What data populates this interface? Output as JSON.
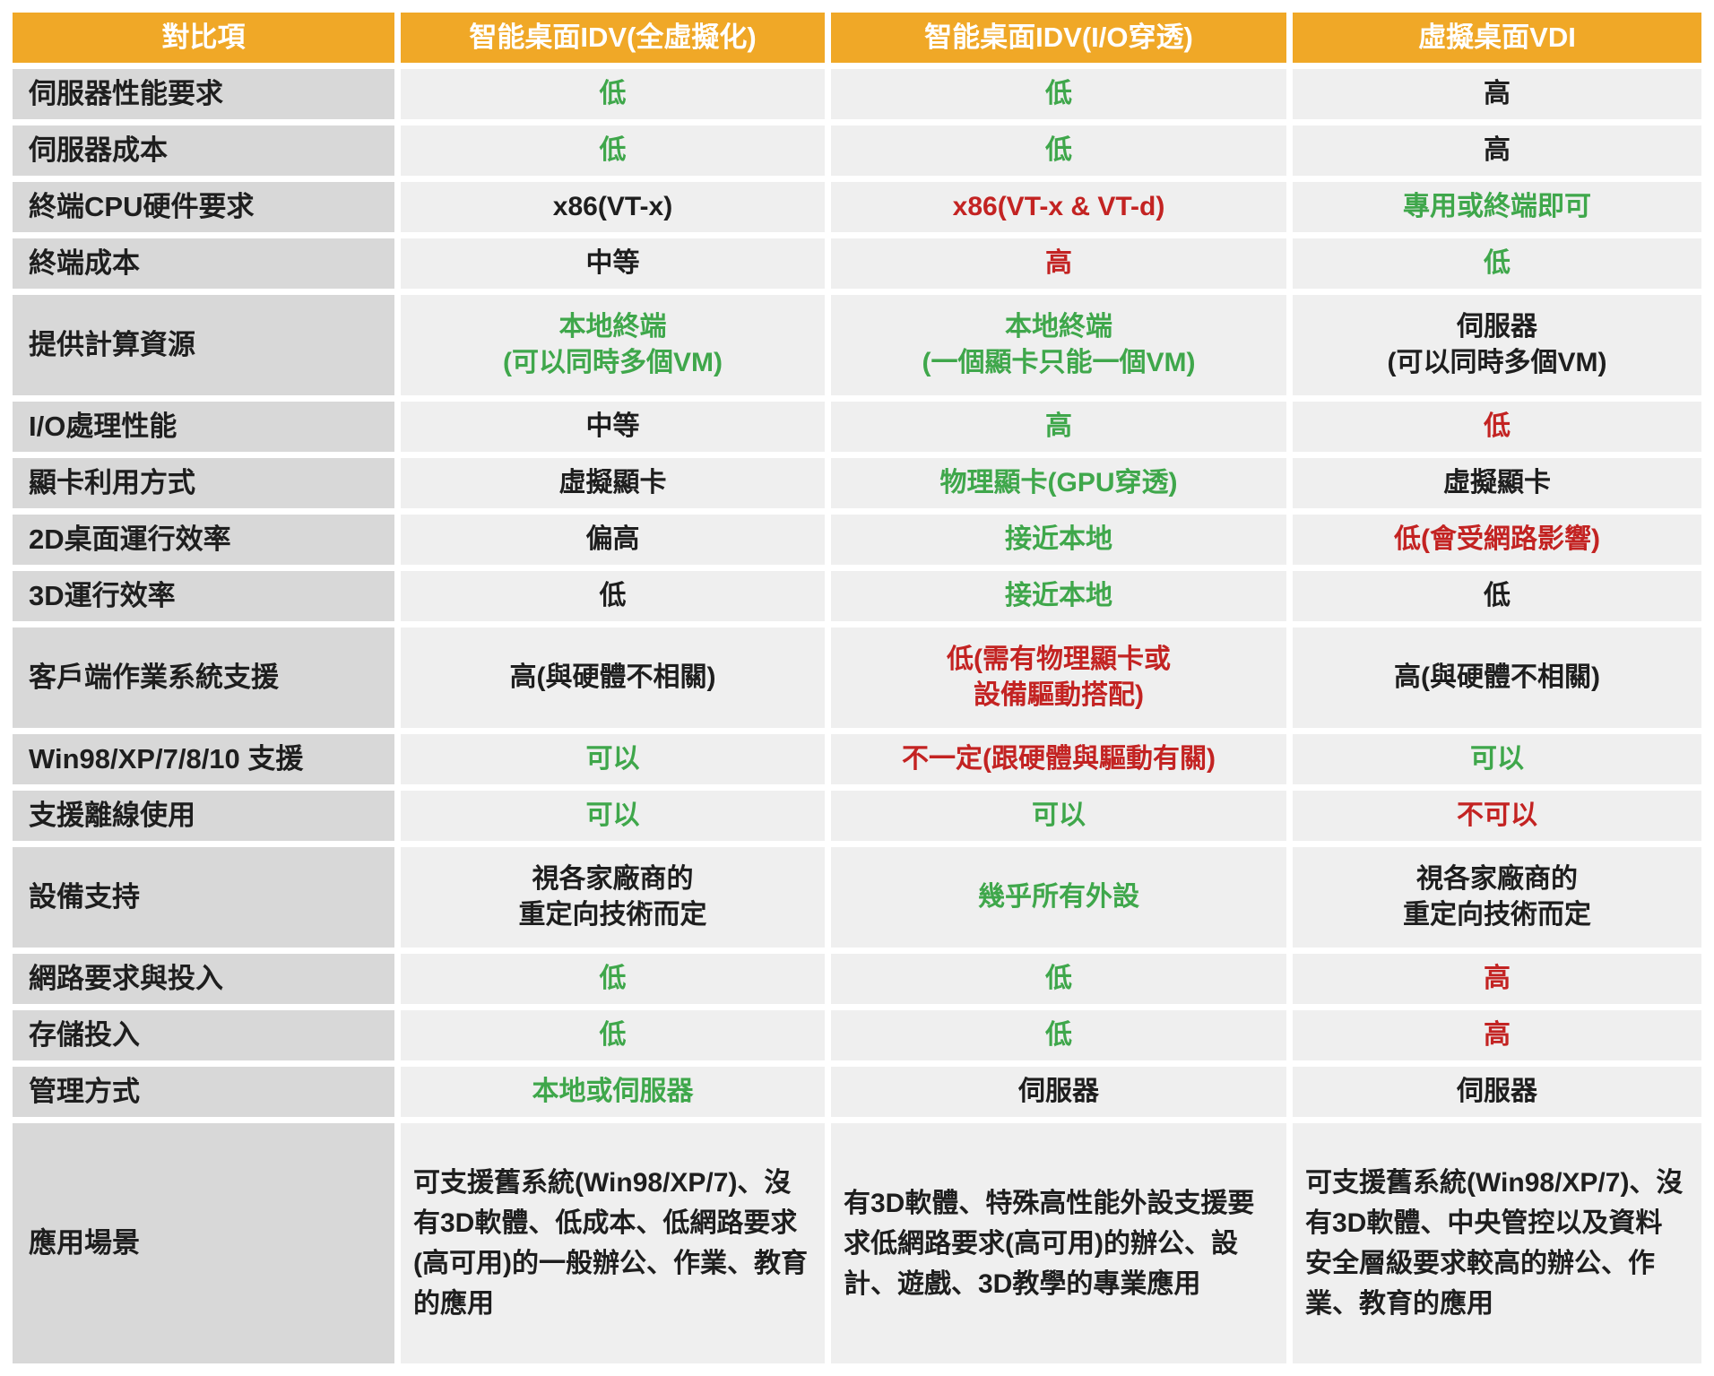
{
  "colors": {
    "header_bg": "#F0A827",
    "header_text": "#FFFFFF",
    "label_bg": "#D8D8D8",
    "cell_bg": "#EFEFEF",
    "green": "#3FA74B",
    "red": "#C32322",
    "black": "#1E1E1E"
  },
  "table": {
    "header": {
      "col0": "對比項",
      "col1": "智能桌面IDV(全虛擬化)",
      "col2": "智能桌面IDV(I/O穿透)",
      "col3": "虛擬桌面VDI"
    },
    "rows": [
      {
        "label": "伺服器性能要求",
        "size": "h1",
        "cells": [
          {
            "text": "低",
            "color": "green"
          },
          {
            "text": "低",
            "color": "green"
          },
          {
            "text": "高",
            "color": "black"
          }
        ]
      },
      {
        "label": "伺服器成本",
        "size": "h1",
        "cells": [
          {
            "text": "低",
            "color": "green"
          },
          {
            "text": "低",
            "color": "green"
          },
          {
            "text": "高",
            "color": "black"
          }
        ]
      },
      {
        "label": "終端CPU硬件要求",
        "size": "h1",
        "cells": [
          {
            "text": "x86(VT-x)",
            "color": "black"
          },
          {
            "text": "x86(VT-x & VT-d)",
            "color": "red"
          },
          {
            "text": "專用或終端即可",
            "color": "green"
          }
        ]
      },
      {
        "label": "終端成本",
        "size": "h1",
        "cells": [
          {
            "text": "中等",
            "color": "black"
          },
          {
            "text": "高",
            "color": "red"
          },
          {
            "text": "低",
            "color": "green"
          }
        ]
      },
      {
        "label": "提供計算資源",
        "size": "h2",
        "cells": [
          {
            "text": "本地終端\n(可以同時多個VM)",
            "color": "green"
          },
          {
            "text": "本地終端\n(一個顯卡只能一個VM)",
            "color": "green"
          },
          {
            "text": "伺服器\n(可以同時多個VM)",
            "color": "black"
          }
        ]
      },
      {
        "label": "I/O處理性能",
        "size": "h1",
        "cells": [
          {
            "text": "中等",
            "color": "black"
          },
          {
            "text": "高",
            "color": "green"
          },
          {
            "text": "低",
            "color": "red"
          }
        ]
      },
      {
        "label": "顯卡利用方式",
        "size": "h1",
        "cells": [
          {
            "text": "虛擬顯卡",
            "color": "black"
          },
          {
            "text": "物理顯卡(GPU穿透)",
            "color": "green"
          },
          {
            "text": "虛擬顯卡",
            "color": "black"
          }
        ]
      },
      {
        "label": "2D桌面運行效率",
        "size": "h1",
        "cells": [
          {
            "text": "偏高",
            "color": "black"
          },
          {
            "text": "接近本地",
            "color": "green"
          },
          {
            "text": "低(會受網路影響)",
            "color": "red"
          }
        ]
      },
      {
        "label": "3D運行效率",
        "size": "h1",
        "cells": [
          {
            "text": "低",
            "color": "black"
          },
          {
            "text": "接近本地",
            "color": "green"
          },
          {
            "text": "低",
            "color": "black"
          }
        ]
      },
      {
        "label": "客戶端作業系統支援",
        "size": "h2",
        "cells": [
          {
            "text": "高(與硬體不相關)",
            "color": "black"
          },
          {
            "text": "低(需有物理顯卡或\n設備驅動搭配)",
            "color": "red"
          },
          {
            "text": "高(與硬體不相關)",
            "color": "black"
          }
        ]
      },
      {
        "label": "Win98/XP/7/8/10 支援",
        "size": "h1",
        "cells": [
          {
            "text": "可以",
            "color": "green"
          },
          {
            "text": "不一定(跟硬體與驅動有關)",
            "color": "red"
          },
          {
            "text": "可以",
            "color": "green"
          }
        ]
      },
      {
        "label": "支援離線使用",
        "size": "h1",
        "cells": [
          {
            "text": "可以",
            "color": "green"
          },
          {
            "text": "可以",
            "color": "green"
          },
          {
            "text": "不可以",
            "color": "red"
          }
        ]
      },
      {
        "label": "設備支持",
        "size": "h2",
        "cells": [
          {
            "text": "視各家廠商的\n重定向技術而定",
            "color": "black"
          },
          {
            "text": "幾乎所有外設",
            "color": "green"
          },
          {
            "text": "視各家廠商的\n重定向技術而定",
            "color": "black"
          }
        ]
      },
      {
        "label": "網路要求與投入",
        "size": "h1",
        "cells": [
          {
            "text": "低",
            "color": "green"
          },
          {
            "text": "低",
            "color": "green"
          },
          {
            "text": "高",
            "color": "red"
          }
        ]
      },
      {
        "label": "存儲投入",
        "size": "h1",
        "cells": [
          {
            "text": "低",
            "color": "green"
          },
          {
            "text": "低",
            "color": "green"
          },
          {
            "text": "高",
            "color": "red"
          }
        ]
      },
      {
        "label": "管理方式",
        "size": "h1",
        "cells": [
          {
            "text": "本地或伺服器",
            "color": "green"
          },
          {
            "text": "伺服器",
            "color": "black"
          },
          {
            "text": "伺服器",
            "color": "black"
          }
        ]
      },
      {
        "label": "應用場景",
        "size": "h3",
        "para": true,
        "cells": [
          {
            "text": "可支援舊系統(Win98/XP/7)、沒有3D軟體、低成本、低網路要求(高可用)的一般辦公、作業、教育的應用",
            "color": "black"
          },
          {
            "text": "有3D軟體、特殊高性能外設支援要求低網路要求(高可用)的辦公、設計、遊戲、3D教學的專業應用",
            "color": "black"
          },
          {
            "text": "可支援舊系統(Win98/XP/7)、沒有3D軟體、中央管控以及資料安全層級要求較高的辦公、作業、教育的應用",
            "color": "black"
          }
        ]
      }
    ]
  }
}
